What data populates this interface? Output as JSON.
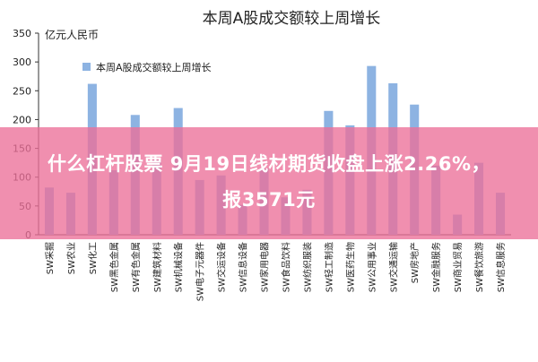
{
  "chart_data": {
    "type": "bar",
    "title": "本周A股成交额较上周增长",
    "ylabel": "亿元人民币",
    "xlabel": "",
    "ylim": [
      0,
      350
    ],
    "yticks": [
      0,
      50,
      100,
      150,
      200,
      250,
      300,
      350
    ],
    "grid": false,
    "legend_position": "top-left",
    "bar_color": "#8db3e2",
    "series": [
      {
        "name": "本周A股成交额较上周增长",
        "values": [
          82,
          73,
          262,
          112,
          208,
          130,
          220,
          95,
          103,
          52,
          115,
          65,
          78,
          215,
          190,
          293,
          263,
          226,
          120,
          35,
          125,
          73
        ]
      }
    ],
    "categories": [
      "SW采掘",
      "SW农业",
      "SW化工",
      "SW黑色金属",
      "SW有色金属",
      "SW建筑材料",
      "SW机械设备",
      "SW电子元器件",
      "SW交运设备",
      "SW信息设备",
      "SW家用电器",
      "SW食品饮料",
      "SW纺织服装",
      "SW轻工制造",
      "SW医药生物",
      "SW公用事业",
      "SW交通运输",
      "SW房地产",
      "SW金融服务",
      "SW商业贸易",
      "SW餐饮旅游",
      "SW信息服务"
    ]
  },
  "overlay": {
    "line1": "什么杠杆股票 9月19日线材期货收盘上涨2.26%，",
    "line2": "报3571元"
  }
}
